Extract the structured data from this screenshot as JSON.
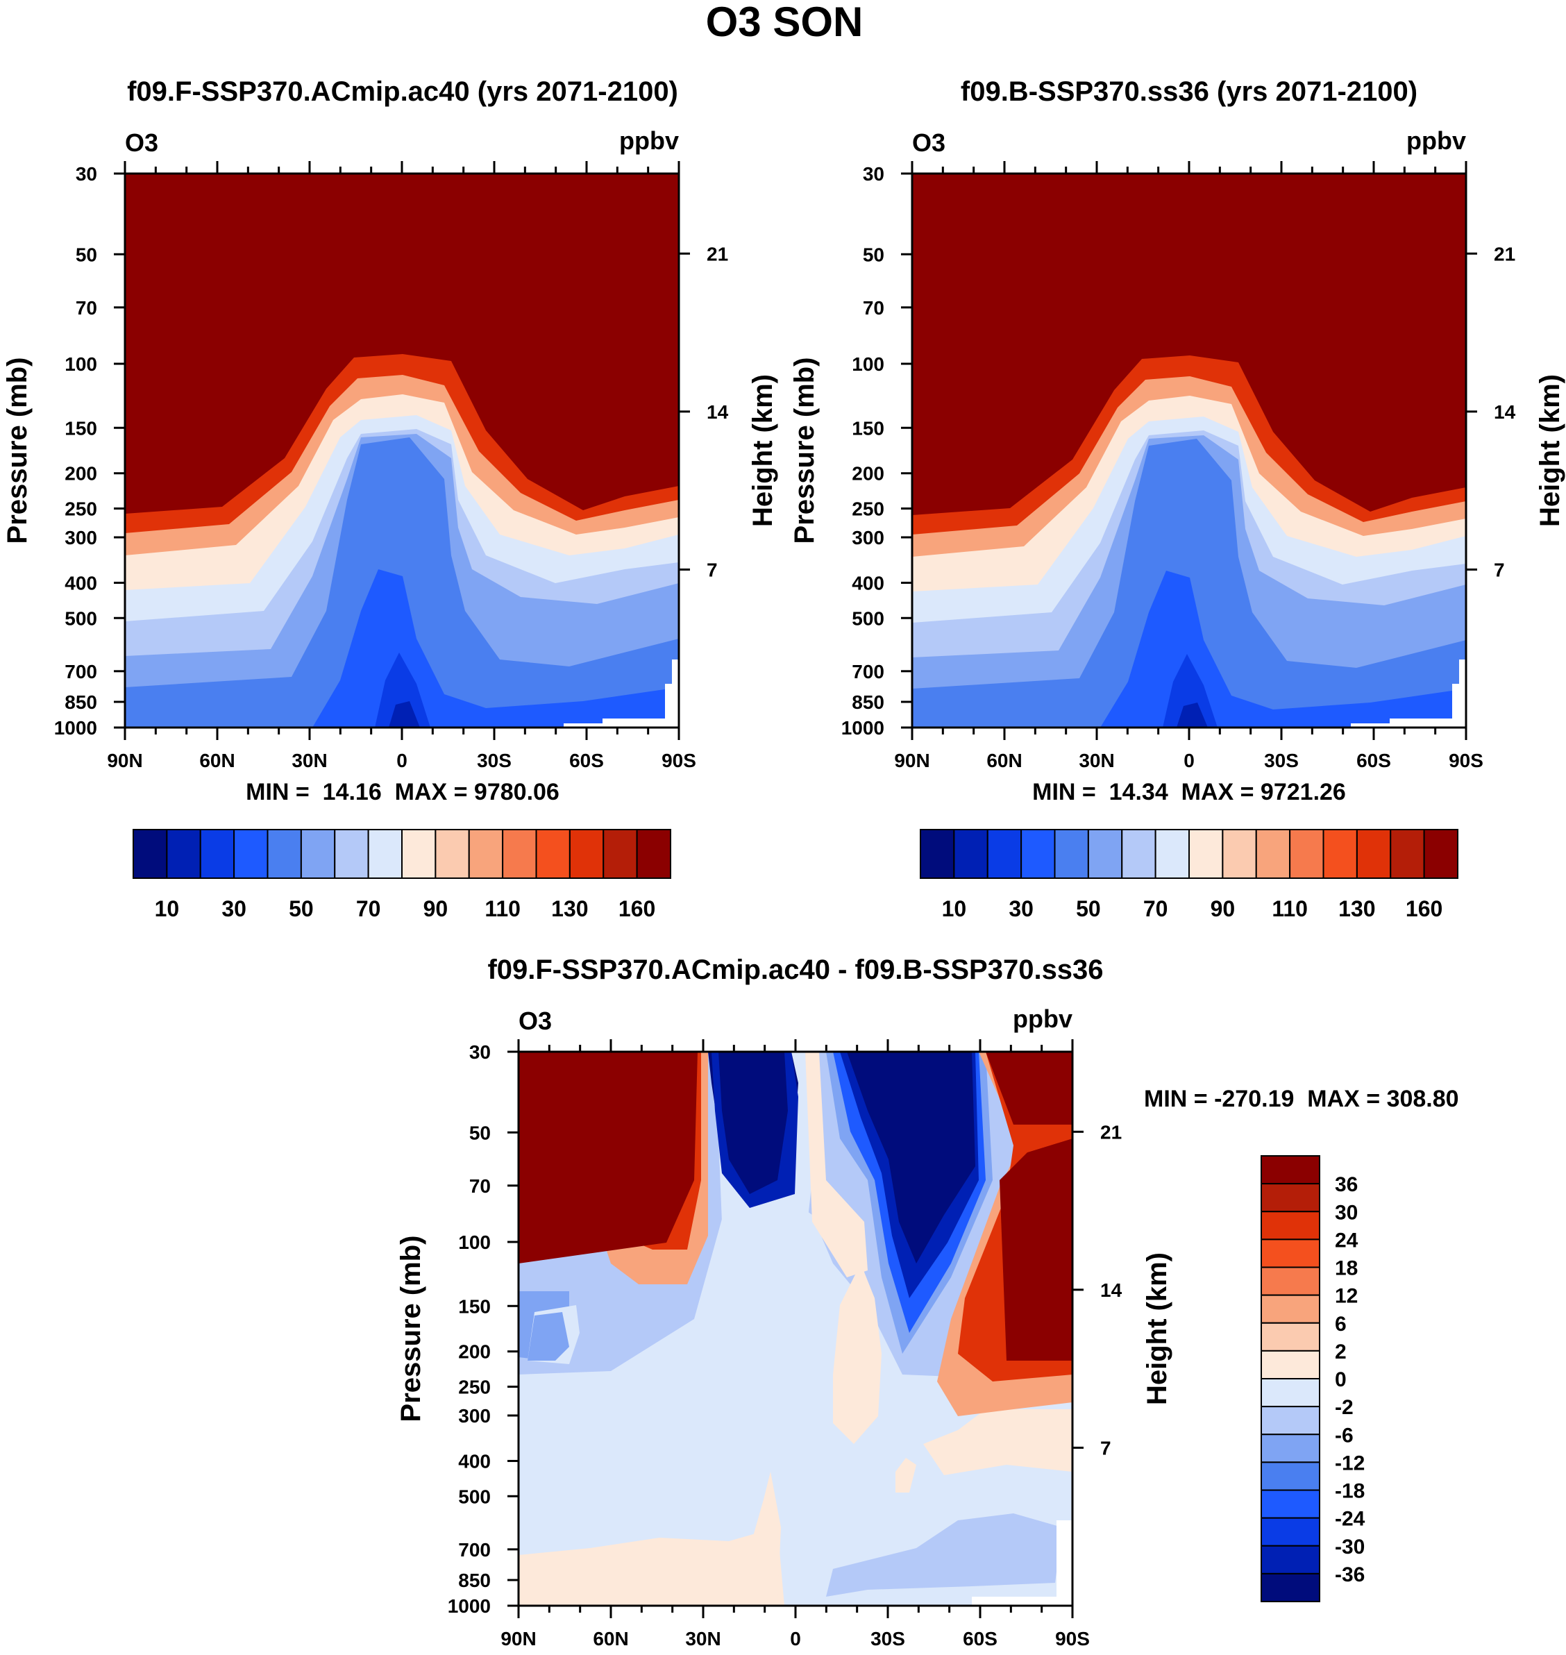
{
  "main_title": "O3 SON",
  "chart_data": [
    {
      "type": "heatmap",
      "id": "panel1",
      "title": "f09.F-SSP370.ACmip.ac40 (yrs 2071-2100)",
      "variable": "O3",
      "units": "ppbv",
      "ylabel": "Pressure (mb)",
      "ylabel_right": "Height (km)",
      "x_ticks": [
        "90N",
        "60N",
        "30N",
        "0",
        "30S",
        "60S",
        "90S"
      ],
      "x_range": [
        90,
        -90
      ],
      "y_ticks": [
        30,
        50,
        70,
        100,
        150,
        200,
        250,
        300,
        400,
        500,
        700,
        850,
        1000
      ],
      "y_range_mb": [
        30,
        1000
      ],
      "height_ticks_km": [
        21,
        14,
        7
      ],
      "stats_text": "MIN =  14.16  MAX = 9780.06",
      "min": 14.16,
      "max": 9780.06,
      "colorbar_labels": [
        "10",
        "30",
        "50",
        "70",
        "90",
        "110",
        "130",
        "160"
      ]
    },
    {
      "type": "heatmap",
      "id": "panel2",
      "title": "f09.B-SSP370.ss36 (yrs 2071-2100)",
      "variable": "O3",
      "units": "ppbv",
      "ylabel": "Pressure (mb)",
      "ylabel_right": "Height (km)",
      "x_ticks": [
        "90N",
        "60N",
        "30N",
        "0",
        "30S",
        "60S",
        "90S"
      ],
      "x_range": [
        90,
        -90
      ],
      "y_ticks": [
        30,
        50,
        70,
        100,
        150,
        200,
        250,
        300,
        400,
        500,
        700,
        850,
        1000
      ],
      "y_range_mb": [
        30,
        1000
      ],
      "height_ticks_km": [
        21,
        14,
        7
      ],
      "stats_text": "MIN =  14.34  MAX = 9721.26",
      "min": 14.34,
      "max": 9721.26,
      "colorbar_labels": [
        "10",
        "30",
        "50",
        "70",
        "90",
        "110",
        "130",
        "160"
      ]
    },
    {
      "type": "heatmap",
      "id": "panel3",
      "title": "f09.F-SSP370.ACmip.ac40 - f09.B-SSP370.ss36",
      "variable": "O3",
      "units": "ppbv",
      "ylabel": "Pressure (mb)",
      "ylabel_right": "Height (km)",
      "x_ticks": [
        "90N",
        "60N",
        "30N",
        "0",
        "30S",
        "60S",
        "90S"
      ],
      "x_range": [
        90,
        -90
      ],
      "y_ticks": [
        30,
        50,
        70,
        100,
        150,
        200,
        250,
        300,
        400,
        500,
        700,
        850,
        1000
      ],
      "y_range_mb": [
        30,
        1000
      ],
      "height_ticks_km": [
        21,
        14,
        7
      ],
      "stats_text": "MIN = -270.19  MAX = 308.80",
      "min": -270.19,
      "max": 308.8,
      "colorbar_labels": [
        "36",
        "30",
        "24",
        "18",
        "12",
        "6",
        "2",
        "0",
        "-2",
        "-6",
        "-12",
        "-18",
        "-24",
        "-30",
        "-36"
      ]
    }
  ],
  "palette": {
    "abs": [
      "#000c7c",
      "#0020b4",
      "#0a3ce6",
      "#1e5aff",
      "#4a7ff0",
      "#7fa4f3",
      "#b4c9f8",
      "#dbe8fb",
      "#fde9da",
      "#fbcbb0",
      "#f8a47c",
      "#f67a4d",
      "#f4501e",
      "#e03208",
      "#b41e08",
      "#8b0000"
    ],
    "diff": [
      "#8b0000",
      "#b41e08",
      "#e03208",
      "#f4501e",
      "#f67a4d",
      "#f8a47c",
      "#fbcbb0",
      "#fde9da",
      "#dbe8fb",
      "#b4c9f8",
      "#7fa4f3",
      "#4a7ff0",
      "#1e5aff",
      "#0a3ce6",
      "#0020b4",
      "#000c7c"
    ]
  }
}
